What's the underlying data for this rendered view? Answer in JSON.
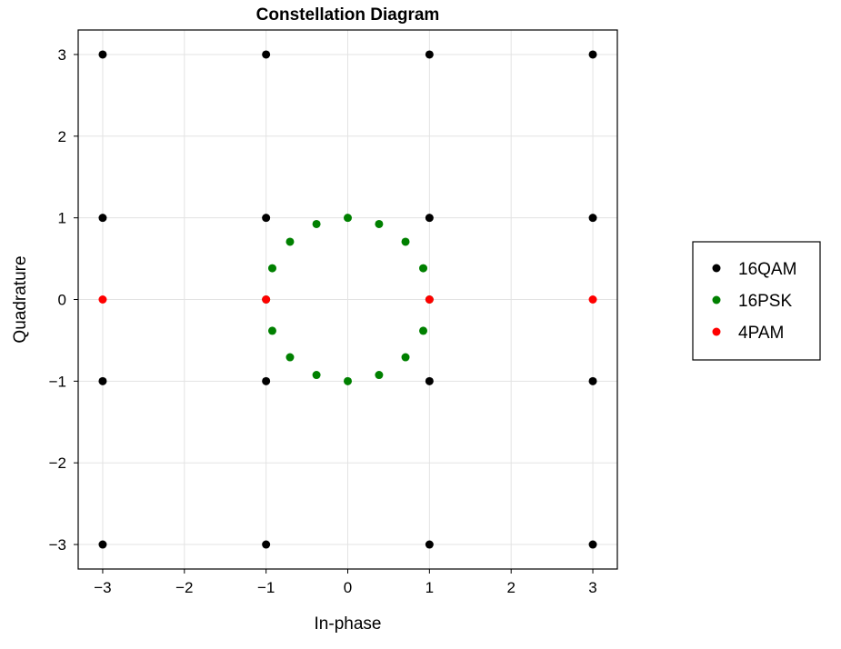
{
  "chart_data": {
    "type": "scatter",
    "title": "Constellation Diagram",
    "xlabel": "In-phase",
    "ylabel": "Quadrature",
    "xlim": [
      -3.3,
      3.3
    ],
    "ylim": [
      -3.3,
      3.3
    ],
    "xticks": [
      -3,
      -2,
      -1,
      0,
      1,
      2,
      3
    ],
    "yticks": [
      -3,
      -2,
      -1,
      0,
      1,
      2,
      3
    ],
    "xtick_labels": [
      "−3",
      "−2",
      "−1",
      "0",
      "1",
      "2",
      "3"
    ],
    "ytick_labels": [
      "−3",
      "−2",
      "−1",
      "0",
      "1",
      "2",
      "3"
    ],
    "grid": true,
    "legend_position": "right",
    "series": [
      {
        "name": "16QAM",
        "color": "#000000",
        "points": [
          [
            -3,
            -3
          ],
          [
            -3,
            -1
          ],
          [
            -3,
            1
          ],
          [
            -3,
            3
          ],
          [
            -1,
            -3
          ],
          [
            -1,
            -1
          ],
          [
            -1,
            1
          ],
          [
            -1,
            3
          ],
          [
            1,
            -3
          ],
          [
            1,
            -1
          ],
          [
            1,
            1
          ],
          [
            1,
            3
          ],
          [
            3,
            -3
          ],
          [
            3,
            -1
          ],
          [
            3,
            1
          ],
          [
            3,
            3
          ]
        ]
      },
      {
        "name": "16PSK",
        "color": "#008000",
        "points": [
          [
            1.0,
            0.0
          ],
          [
            0.924,
            0.383
          ],
          [
            0.707,
            0.707
          ],
          [
            0.383,
            0.924
          ],
          [
            0.0,
            1.0
          ],
          [
            -0.383,
            0.924
          ],
          [
            -0.707,
            0.707
          ],
          [
            -0.924,
            0.383
          ],
          [
            -1.0,
            0.0
          ],
          [
            -0.924,
            -0.383
          ],
          [
            -0.707,
            -0.707
          ],
          [
            -0.383,
            -0.924
          ],
          [
            0.0,
            -1.0
          ],
          [
            0.383,
            -0.924
          ],
          [
            0.707,
            -0.707
          ],
          [
            0.924,
            -0.383
          ]
        ]
      },
      {
        "name": "4PAM",
        "color": "#ff0000",
        "points": [
          [
            -3,
            0
          ],
          [
            -1,
            0
          ],
          [
            1,
            0
          ],
          [
            3,
            0
          ]
        ]
      }
    ]
  }
}
